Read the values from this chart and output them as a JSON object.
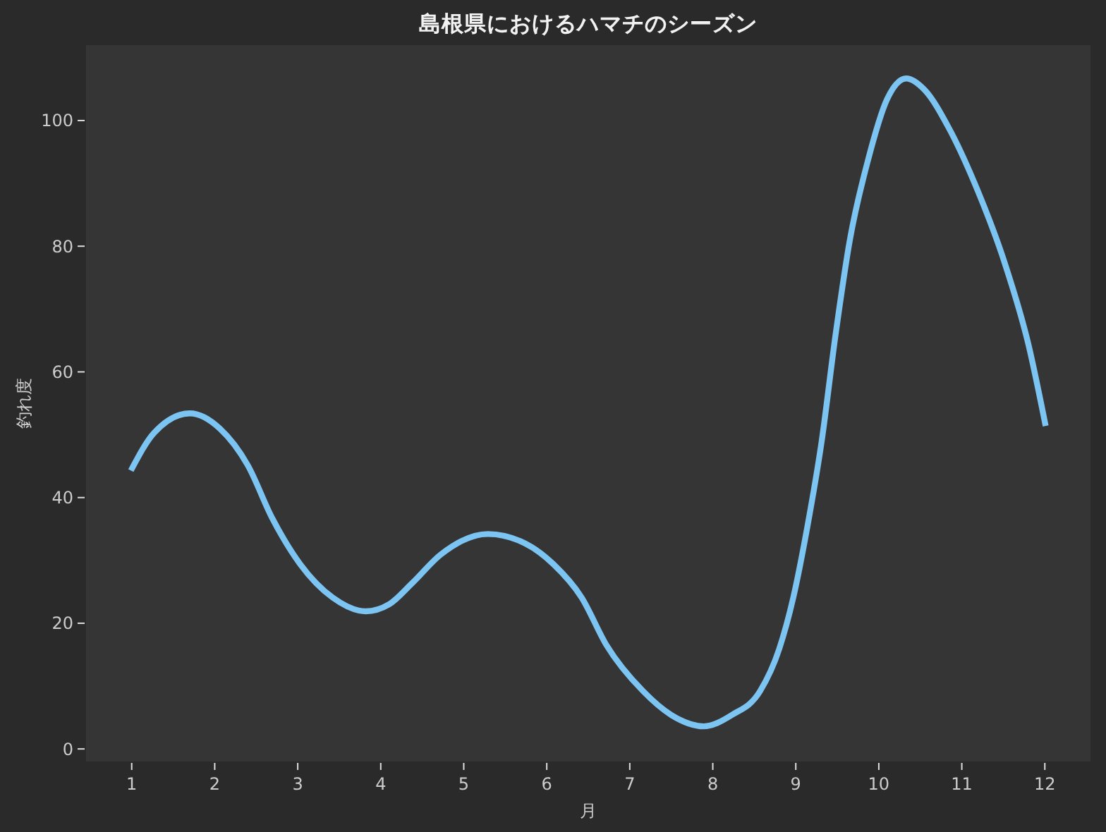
{
  "chart_data": {
    "type": "line",
    "title": "島根県におけるハマチのシーズン",
    "xlabel": "月",
    "ylabel": "釣れ度",
    "series": [
      {
        "color": "#7cc4f2",
        "x": [
          0.99,
          1.27,
          1.7,
          2.06,
          2.4,
          2.69,
          3.03,
          3.42,
          3.82,
          4.1,
          4.38,
          4.72,
          5.29,
          5.74,
          6.08,
          6.42,
          6.72,
          7.16,
          7.5,
          7.89,
          8.23,
          8.57,
          8.8,
          8.97,
          9.14,
          9.31,
          9.48,
          9.65,
          9.87,
          10.1,
          10.33,
          10.55,
          10.84,
          11.18,
          11.52,
          11.8,
          12.01
        ],
        "values": [
          44.3,
          50.3,
          53.4,
          51.0,
          45.1,
          36.8,
          29.4,
          24.1,
          21.9,
          23.0,
          26.4,
          30.9,
          34.2,
          32.7,
          29.4,
          24.1,
          16.5,
          9.2,
          5.4,
          3.6,
          5.4,
          9.2,
          15.9,
          24.1,
          35.4,
          48.8,
          66.0,
          80.9,
          93.7,
          103.4,
          106.7,
          104.9,
          98.9,
          89.2,
          77.2,
          64.5,
          51.4
        ]
      }
    ],
    "xlim": [
      0.45,
      12.55
    ],
    "ylim": [
      -2,
      112
    ],
    "xticks": [
      1,
      2,
      3,
      4,
      5,
      6,
      7,
      8,
      9,
      10,
      11,
      12
    ],
    "yticks": [
      0,
      20,
      40,
      60,
      80,
      100
    ],
    "grid": false,
    "line_style": "solid"
  }
}
